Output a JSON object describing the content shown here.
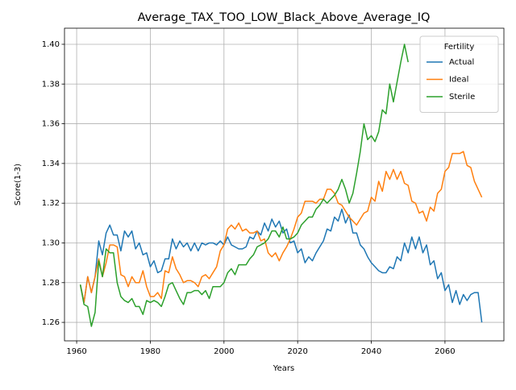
{
  "chart_data": {
    "type": "line",
    "title": "Average_TAX_TOO_LOW_Black_Above_Average_IQ",
    "xlabel": "Years",
    "ylabel": "Score(1-3)",
    "legend_title": "Fertility",
    "legend_loc": "upper right",
    "grid": true,
    "xlim": [
      1956.7,
      2076.0
    ],
    "xticks": [
      1960,
      1980,
      2000,
      2020,
      2040,
      2060
    ],
    "ylim": [
      1.2507,
      1.4081
    ],
    "yticks": [
      1.26,
      1.28,
      {
        "value": 1.3,
        "label": "1.30"
      },
      1.32,
      1.34,
      1.36,
      1.38,
      {
        "value": 1.4,
        "label": "1.40"
      }
    ],
    "x": [
      1961,
      1962,
      1963,
      1964,
      1965,
      1966,
      1967,
      1968,
      1969,
      1970,
      1971,
      1972,
      1973,
      1974,
      1975,
      1976,
      1977,
      1978,
      1979,
      1980,
      1981,
      1982,
      1983,
      1984,
      1985,
      1986,
      1987,
      1988,
      1989,
      1990,
      1991,
      1992,
      1993,
      1994,
      1995,
      1996,
      1997,
      1998,
      1999,
      2000,
      2001,
      2002,
      2003,
      2004,
      2005,
      2006,
      2007,
      2008,
      2009,
      2010,
      2011,
      2012,
      2013,
      2014,
      2015,
      2016,
      2017,
      2018,
      2019,
      2020,
      2021,
      2022,
      2023,
      2024,
      2025,
      2026,
      2027,
      2028,
      2029,
      2030,
      2031,
      2032,
      2033,
      2034,
      2035,
      2036,
      2037,
      2038,
      2039,
      2040,
      2041,
      2042,
      2043,
      2044,
      2045,
      2046,
      2047,
      2048,
      2049,
      2050,
      2051,
      2052,
      2053,
      2054,
      2055,
      2056,
      2057,
      2058,
      2059,
      2060,
      2061,
      2062,
      2063,
      2064,
      2065,
      2066,
      2067,
      2068,
      2069,
      2070
    ],
    "series": [
      {
        "name": "Actual",
        "color": "#1f77b4",
        "values": [
          1.279,
          1.27,
          1.283,
          1.275,
          1.283,
          1.301,
          1.294,
          1.305,
          1.309,
          1.304,
          1.304,
          1.296,
          1.306,
          1.303,
          1.306,
          1.297,
          1.3,
          1.294,
          1.295,
          1.288,
          1.291,
          1.285,
          1.286,
          1.292,
          1.292,
          1.302,
          1.297,
          1.301,
          1.298,
          1.3,
          1.296,
          1.3,
          1.296,
          1.3,
          1.299,
          1.3,
          1.3,
          1.299,
          1.301,
          1.299,
          1.303,
          1.299,
          1.298,
          1.297,
          1.297,
          1.298,
          1.303,
          1.302,
          1.306,
          1.304,
          1.31,
          1.306,
          1.312,
          1.308,
          1.311,
          1.305,
          1.307,
          1.3,
          1.301,
          1.295,
          1.297,
          1.29,
          1.293,
          1.291,
          1.295,
          1.298,
          1.301,
          1.307,
          1.306,
          1.313,
          1.311,
          1.317,
          1.31,
          1.314,
          1.305,
          1.305,
          1.299,
          1.297,
          1.293,
          1.29,
          1.288,
          1.286,
          1.285,
          1.285,
          1.288,
          1.287,
          1.293,
          1.291,
          1.3,
          1.295,
          1.303,
          1.297,
          1.303,
          1.295,
          1.299,
          1.289,
          1.291,
          1.282,
          1.285,
          1.276,
          1.279,
          1.27,
          1.276,
          1.269,
          1.274,
          1.271,
          1.274,
          1.275,
          1.275,
          1.26
        ]
      },
      {
        "name": "Ideal",
        "color": "#ff7f0e",
        "values": [
          1.279,
          1.27,
          1.283,
          1.275,
          1.283,
          1.292,
          1.283,
          1.29,
          1.299,
          1.299,
          1.298,
          1.284,
          1.283,
          1.278,
          1.283,
          1.28,
          1.28,
          1.286,
          1.278,
          1.273,
          1.273,
          1.275,
          1.272,
          1.286,
          1.285,
          1.293,
          1.287,
          1.284,
          1.28,
          1.281,
          1.281,
          1.28,
          1.278,
          1.283,
          1.284,
          1.282,
          1.285,
          1.288,
          1.296,
          1.299,
          1.307,
          1.309,
          1.307,
          1.31,
          1.306,
          1.307,
          1.305,
          1.305,
          1.306,
          1.301,
          1.302,
          1.295,
          1.293,
          1.295,
          1.291,
          1.295,
          1.298,
          1.302,
          1.307,
          1.313,
          1.315,
          1.321,
          1.321,
          1.321,
          1.32,
          1.322,
          1.322,
          1.327,
          1.327,
          1.325,
          1.32,
          1.319,
          1.316,
          1.313,
          1.311,
          1.309,
          1.312,
          1.315,
          1.316,
          1.323,
          1.321,
          1.331,
          1.326,
          1.336,
          1.332,
          1.337,
          1.332,
          1.336,
          1.33,
          1.329,
          1.321,
          1.32,
          1.315,
          1.316,
          1.311,
          1.318,
          1.316,
          1.325,
          1.327,
          1.336,
          1.338,
          1.345,
          1.345,
          1.345,
          1.346,
          1.339,
          1.338,
          1.331,
          1.327,
          1.323
        ]
      },
      {
        "name": "Sterile",
        "color": "#2ca02c",
        "values": [
          1.279,
          1.269,
          1.268,
          1.258,
          1.265,
          1.291,
          1.283,
          1.297,
          1.295,
          1.295,
          1.28,
          1.273,
          1.271,
          1.27,
          1.272,
          1.268,
          1.268,
          1.264,
          1.271,
          1.27,
          1.271,
          1.27,
          1.268,
          1.273,
          1.279,
          1.28,
          1.276,
          1.272,
          1.269,
          1.275,
          1.275,
          1.276,
          1.276,
          1.274,
          1.276,
          1.272,
          1.278,
          1.278,
          1.278,
          1.28,
          1.285,
          1.287,
          1.284,
          1.289,
          1.289,
          1.289,
          1.292,
          1.294,
          1.298,
          1.299,
          1.3,
          1.302,
          1.306,
          1.306,
          1.303,
          1.308,
          1.302,
          1.302,
          1.303,
          1.305,
          1.309,
          1.311,
          1.313,
          1.313,
          1.317,
          1.319,
          1.322,
          1.32,
          1.322,
          1.324,
          1.327,
          1.332,
          1.327,
          1.32,
          1.325,
          1.335,
          1.346,
          1.36,
          1.352,
          1.354,
          1.351,
          1.356,
          1.367,
          1.365,
          1.38,
          1.371,
          1.381,
          1.391,
          1.4,
          1.391,
          null,
          null,
          null,
          null,
          null,
          null,
          null,
          null,
          null,
          null,
          null,
          null,
          null,
          null,
          null,
          null,
          null,
          null,
          null,
          null
        ]
      }
    ]
  }
}
